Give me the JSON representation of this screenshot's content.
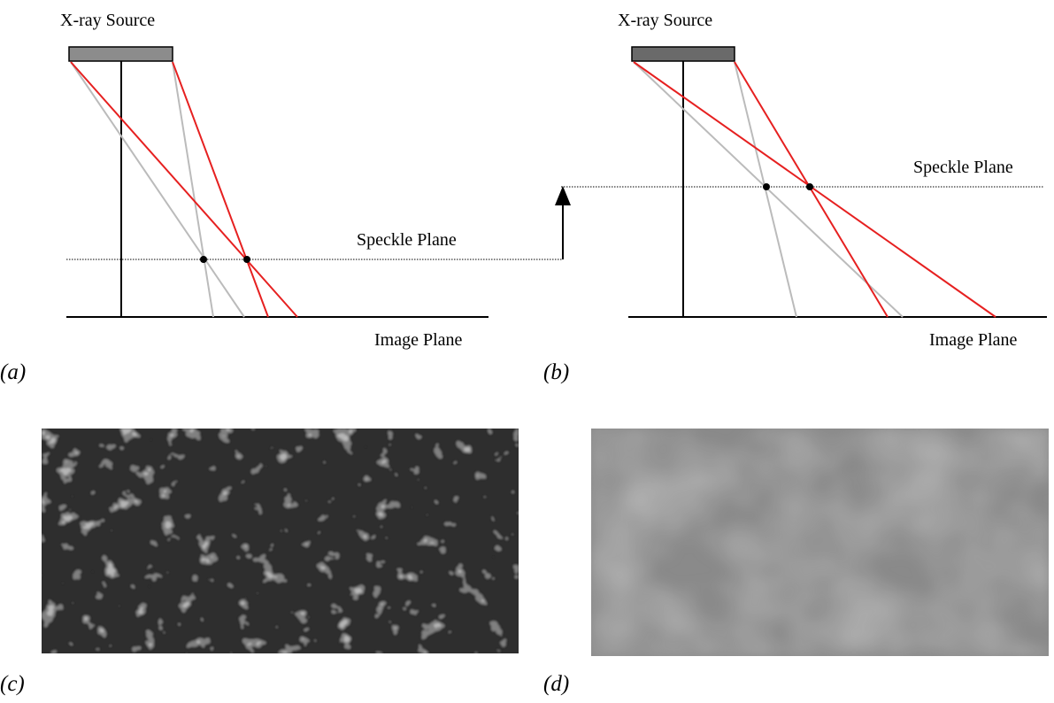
{
  "panels": {
    "a": {
      "source_label": "X-ray Source",
      "speckle_label": "Speckle Plane",
      "image_label": "Image Plane",
      "caption": "(a)"
    },
    "b": {
      "source_label": "X-ray Source",
      "speckle_label": "Speckle Plane",
      "image_label": "Image Plane",
      "caption": "(b)"
    },
    "c": {
      "caption": "(c)"
    },
    "d": {
      "caption": "(d)"
    }
  }
}
